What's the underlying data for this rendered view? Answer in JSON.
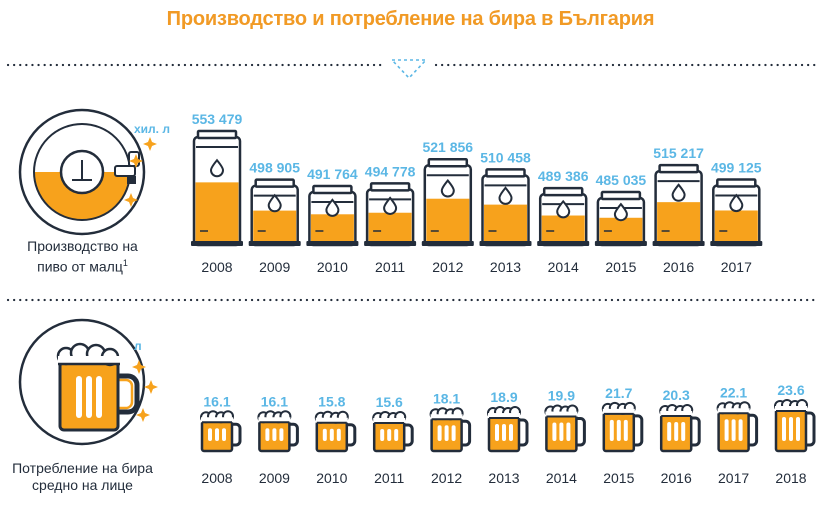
{
  "title": "Производство и потребление на бира в България",
  "colors": {
    "orange": "#f7a21c",
    "dark": "#232d3b",
    "blue": "#5bb7e5",
    "accent": "#f19a25"
  },
  "production": {
    "label_line1": "Производство на",
    "label_line2": "пиво от малц",
    "footnote": "1",
    "unit": "хил. л",
    "icon": "keg-gauge-icon"
  },
  "consumption": {
    "label_line1": "Потребление на бира",
    "label_line2": "средно на лице",
    "unit": "л",
    "icon": "beer-mug-icon"
  },
  "chart_data": [
    {
      "type": "bar",
      "name": "production",
      "categories": [
        "2008",
        "2009",
        "2010",
        "2011",
        "2012",
        "2013",
        "2014",
        "2015",
        "2016",
        "2017"
      ],
      "values": [
        553479,
        498905,
        491764,
        494778,
        521856,
        510458,
        489386,
        485035,
        515217,
        499125
      ],
      "value_labels": [
        "553 479",
        "498 905",
        "491 764",
        "494 778",
        "521 856",
        "510 458",
        "489 386",
        "485 035",
        "515 217",
        "499 125"
      ],
      "title": "Производство на пиво от малц",
      "unit": "хил. л"
    },
    {
      "type": "bar",
      "name": "consumption",
      "categories": [
        "2008",
        "2009",
        "2010",
        "2011",
        "2012",
        "2013",
        "2014",
        "2015",
        "2016",
        "2017",
        "2018"
      ],
      "values": [
        16.1,
        16.1,
        15.8,
        15.6,
        18.1,
        18.9,
        19.9,
        21.7,
        20.3,
        22.1,
        23.6
      ],
      "value_labels": [
        "16.1",
        "16.1",
        "15.8",
        "15.6",
        "18.1",
        "18.9",
        "19.9",
        "21.7",
        "20.3",
        "22.1",
        "23.6"
      ],
      "title": "Потребление на бира средно на лице",
      "unit": "л"
    }
  ]
}
